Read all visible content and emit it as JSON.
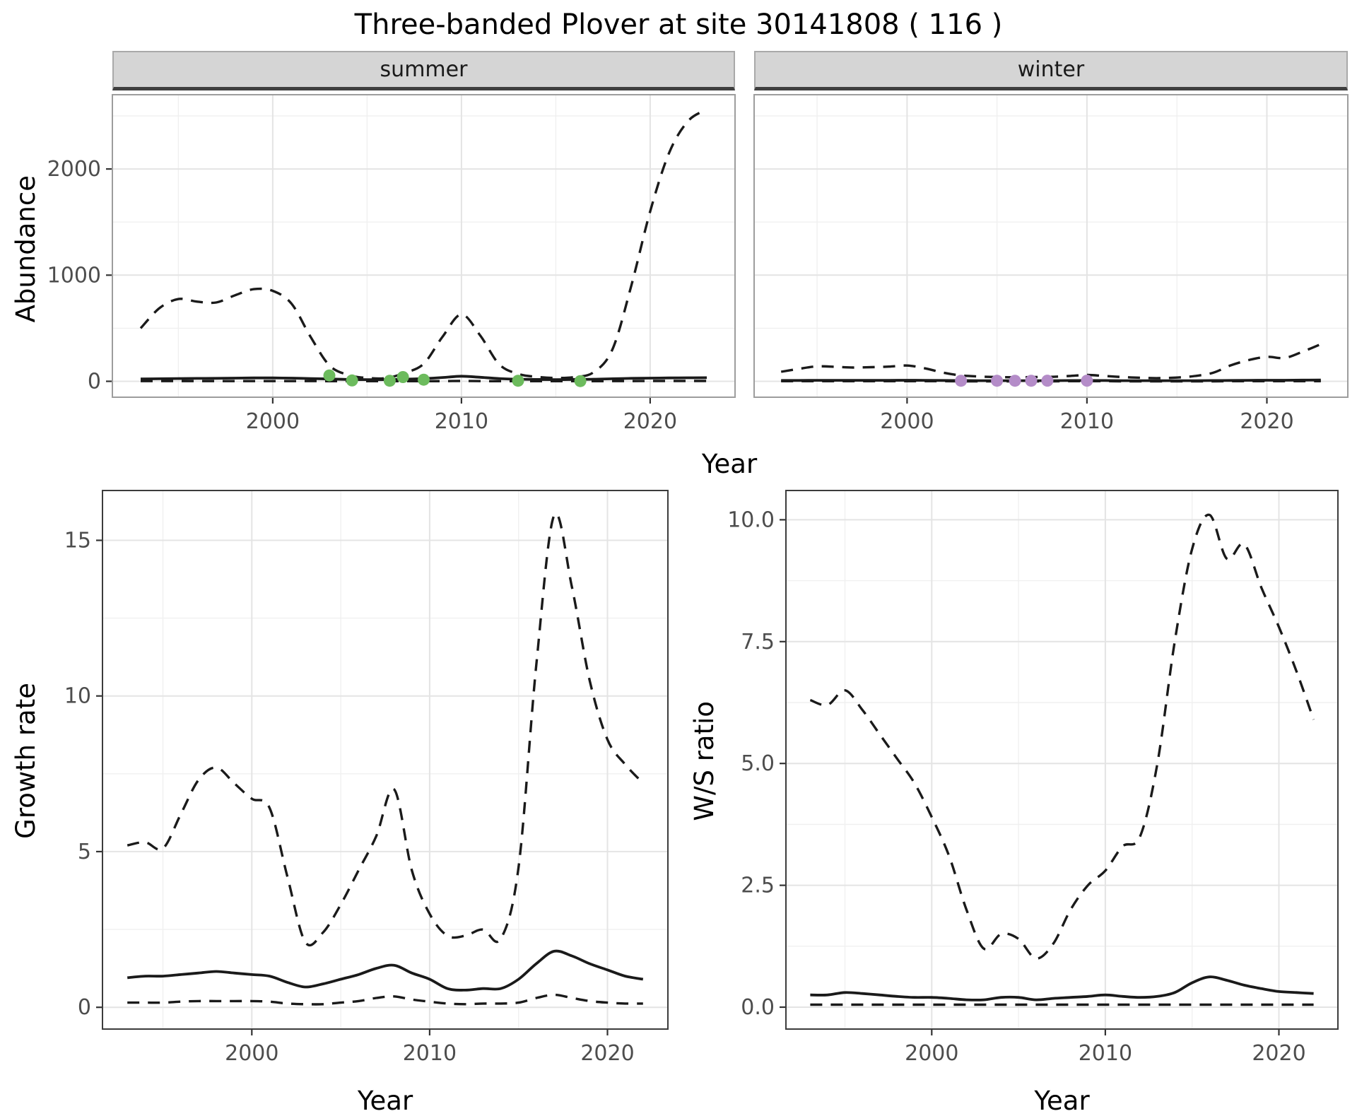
{
  "title": "Three-banded Plover at site 30141808 ( 116 )",
  "axes": {
    "abundance_label": "Abundance",
    "growth_label": "Growth rate",
    "ws_label": "W/S ratio",
    "year_label": "Year"
  },
  "facets": {
    "summer": "summer",
    "winter": "winter"
  },
  "colors": {
    "line": "#1A1A1A",
    "summer_points": "#6CBB5D",
    "winter_points": "#B48CC8",
    "strip_bg": "#D5D5D5",
    "grid_major": "#E4E4E4",
    "grid_minor": "#F0F0F0",
    "tick_text": "#4D4D4D",
    "tick_mark": "#333333"
  },
  "chart_data": [
    {
      "id": "abundance_summer",
      "type": "line",
      "facet": "summer",
      "xlabel": "Year",
      "ylabel": "Abundance",
      "xlim": [
        1991.5,
        2024.5
      ],
      "ylim": [
        -150,
        2700
      ],
      "xticks": [
        2000,
        2010,
        2020
      ],
      "yticks": [
        0,
        1000,
        2000
      ],
      "xminor": [
        1995,
        2005,
        2015
      ],
      "yminor": [
        500,
        1500,
        2500
      ],
      "show_y_tick_labels": true,
      "x": [
        1993,
        1994,
        1995,
        1996,
        1997,
        1998,
        1999,
        2000,
        2001,
        2002,
        2003,
        2004,
        2005,
        2006,
        2007,
        2008,
        2009,
        2010,
        2011,
        2012,
        2013,
        2014,
        2015,
        2016,
        2017,
        2018,
        2019,
        2020,
        2021,
        2022,
        2023
      ],
      "series": [
        {
          "name": "upper_ci",
          "dash": true,
          "y": [
            500,
            690,
            775,
            750,
            742,
            810,
            868,
            852,
            730,
            420,
            150,
            60,
            32,
            30,
            80,
            165,
            420,
            630,
            430,
            160,
            70,
            42,
            32,
            40,
            85,
            300,
            900,
            1600,
            2150,
            2450,
            2560
          ]
        },
        {
          "name": "median",
          "dash": false,
          "y": [
            22,
            24,
            26,
            27,
            28,
            30,
            32,
            32,
            30,
            26,
            22,
            18,
            16,
            16,
            20,
            26,
            36,
            48,
            38,
            26,
            20,
            17,
            16,
            18,
            20,
            24,
            28,
            30,
            32,
            33,
            34
          ]
        },
        {
          "name": "lower_ci",
          "dash": true,
          "y": [
            2,
            2,
            2,
            2,
            2,
            2,
            2,
            2,
            2,
            2,
            1,
            1,
            1,
            1,
            1,
            1,
            2,
            3,
            2,
            1,
            1,
            1,
            1,
            1,
            1,
            2,
            2,
            3,
            3,
            3,
            3
          ]
        }
      ],
      "points": {
        "name": "observed_counts_summer",
        "color_key": "summer_points",
        "x": [
          2003,
          2004.2,
          2006.2,
          2006.9,
          2008,
          2013,
          2016.3
        ],
        "y": [
          55,
          8,
          5,
          40,
          15,
          5,
          2
        ]
      }
    },
    {
      "id": "abundance_winter",
      "type": "line",
      "facet": "winter",
      "xlabel": "Year",
      "ylabel": "Abundance",
      "xlim": [
        1991.5,
        2024.5
      ],
      "ylim": [
        -150,
        2700
      ],
      "xticks": [
        2000,
        2010,
        2020
      ],
      "yticks": [
        0,
        1000,
        2000
      ],
      "xminor": [
        1995,
        2005,
        2015
      ],
      "yminor": [
        500,
        1500,
        2500
      ],
      "show_y_tick_labels": false,
      "x": [
        1993,
        1994,
        1995,
        1996,
        1997,
        1998,
        1999,
        2000,
        2001,
        2002,
        2003,
        2004,
        2005,
        2006,
        2007,
        2008,
        2009,
        2010,
        2011,
        2012,
        2013,
        2014,
        2015,
        2016,
        2017,
        2018,
        2019,
        2020,
        2021,
        2022,
        2023
      ],
      "series": [
        {
          "name": "upper_ci",
          "dash": true,
          "y": [
            90,
            118,
            140,
            136,
            130,
            133,
            138,
            148,
            122,
            82,
            55,
            45,
            40,
            38,
            40,
            42,
            50,
            60,
            50,
            40,
            33,
            30,
            35,
            50,
            80,
            150,
            200,
            230,
            220,
            280,
            350
          ]
        },
        {
          "name": "median",
          "dash": false,
          "y": [
            8,
            8,
            9,
            9,
            9,
            9,
            9,
            10,
            9,
            8,
            7,
            6,
            6,
            6,
            6,
            6,
            7,
            8,
            7,
            6,
            6,
            5,
            6,
            6,
            7,
            8,
            9,
            10,
            10,
            11,
            12
          ]
        },
        {
          "name": "lower_ci",
          "dash": true,
          "y": [
            1,
            1,
            1,
            1,
            1,
            1,
            1,
            1,
            1,
            1,
            0,
            0,
            0,
            0,
            0,
            0,
            1,
            1,
            1,
            0,
            0,
            0,
            0,
            0,
            0,
            1,
            1,
            1,
            1,
            1,
            1
          ]
        }
      ],
      "points": {
        "name": "observed_counts_winter",
        "color_key": "winter_points",
        "x": [
          2003,
          2005,
          2006,
          2006.9,
          2007.8,
          2010
        ],
        "y": [
          5,
          5,
          5,
          5,
          6,
          6
        ]
      }
    },
    {
      "id": "growth_rate",
      "type": "line",
      "xlabel": "Year",
      "ylabel": "Growth rate",
      "xlim": [
        1991.6,
        2023.4
      ],
      "ylim": [
        -0.7,
        16.6
      ],
      "xticks": [
        2000,
        2010,
        2020
      ],
      "yticks": [
        0,
        5,
        10,
        15
      ],
      "xminor": [
        1995,
        2005,
        2015
      ],
      "yminor": [
        2.5,
        7.5,
        12.5
      ],
      "show_y_tick_labels": true,
      "x": [
        1993,
        1994,
        1995,
        1996,
        1997,
        1998,
        1999,
        2000,
        2001,
        2002,
        2003,
        2004,
        2005,
        2006,
        2007,
        2008,
        2009,
        2010,
        2011,
        2012,
        2013,
        2014,
        2015,
        2016,
        2017,
        2018,
        2019,
        2020,
        2021,
        2022
      ],
      "series": [
        {
          "name": "upper_ci",
          "dash": true,
          "y": [
            5.2,
            5.3,
            5.1,
            6.2,
            7.3,
            7.7,
            7.2,
            6.7,
            6.4,
            4.2,
            2.1,
            2.4,
            3.3,
            4.4,
            5.5,
            7.0,
            4.4,
            3.0,
            2.3,
            2.3,
            2.5,
            2.2,
            4.5,
            11.0,
            15.8,
            13.5,
            10.5,
            8.6,
            7.8,
            7.2
          ]
        },
        {
          "name": "median",
          "dash": false,
          "y": [
            0.95,
            1.0,
            1.0,
            1.05,
            1.1,
            1.15,
            1.1,
            1.05,
            1.0,
            0.8,
            0.65,
            0.75,
            0.9,
            1.05,
            1.25,
            1.35,
            1.1,
            0.9,
            0.6,
            0.55,
            0.6,
            0.6,
            0.9,
            1.4,
            1.8,
            1.65,
            1.4,
            1.2,
            1.0,
            0.9
          ]
        },
        {
          "name": "lower_ci",
          "dash": true,
          "y": [
            0.15,
            0.15,
            0.15,
            0.18,
            0.2,
            0.2,
            0.2,
            0.2,
            0.18,
            0.12,
            0.1,
            0.1,
            0.15,
            0.2,
            0.3,
            0.35,
            0.25,
            0.18,
            0.12,
            0.1,
            0.12,
            0.12,
            0.15,
            0.3,
            0.4,
            0.3,
            0.2,
            0.15,
            0.12,
            0.12
          ]
        }
      ]
    },
    {
      "id": "ws_ratio",
      "type": "line",
      "xlabel": "Year",
      "ylabel": "W/S ratio",
      "xlim": [
        1991.6,
        2023.4
      ],
      "ylim": [
        -0.45,
        10.6
      ],
      "xticks": [
        2000,
        2010,
        2020
      ],
      "yticks": [
        0,
        2.5,
        5,
        7.5,
        10
      ],
      "ytick_labels": [
        "0.0",
        "2.5",
        "5.0",
        "7.5",
        "10.0"
      ],
      "xminor": [
        1995,
        2005,
        2015
      ],
      "yminor": [
        1.25,
        3.75,
        6.25,
        8.75
      ],
      "show_y_tick_labels": true,
      "x": [
        1993,
        1994,
        1995,
        1996,
        1997,
        1998,
        1999,
        2000,
        2001,
        2002,
        2003,
        2004,
        2005,
        2006,
        2007,
        2008,
        2009,
        2010,
        2011,
        2012,
        2013,
        2014,
        2015,
        2016,
        2017,
        2018,
        2019,
        2020,
        2021,
        2022
      ],
      "series": [
        {
          "name": "upper_ci",
          "dash": true,
          "y": [
            6.3,
            6.2,
            6.5,
            6.1,
            5.6,
            5.1,
            4.6,
            3.9,
            3.1,
            2.0,
            1.2,
            1.5,
            1.4,
            1.0,
            1.3,
            2.0,
            2.5,
            2.8,
            3.3,
            3.5,
            5.0,
            7.5,
            9.4,
            10.1,
            9.2,
            9.5,
            8.6,
            7.8,
            6.9,
            5.9
          ]
        },
        {
          "name": "median",
          "dash": false,
          "y": [
            0.25,
            0.25,
            0.3,
            0.28,
            0.25,
            0.22,
            0.2,
            0.2,
            0.18,
            0.15,
            0.15,
            0.2,
            0.2,
            0.15,
            0.18,
            0.2,
            0.22,
            0.25,
            0.22,
            0.2,
            0.22,
            0.3,
            0.5,
            0.62,
            0.55,
            0.45,
            0.38,
            0.32,
            0.3,
            0.28
          ]
        },
        {
          "name": "lower_ci",
          "dash": true,
          "y": [
            0.05,
            0.05,
            0.05,
            0.05,
            0.05,
            0.05,
            0.05,
            0.05,
            0.05,
            0.05,
            0.05,
            0.05,
            0.05,
            0.05,
            0.05,
            0.05,
            0.05,
            0.05,
            0.05,
            0.05,
            0.05,
            0.05,
            0.05,
            0.05,
            0.05,
            0.05,
            0.05,
            0.05,
            0.05,
            0.05
          ]
        }
      ]
    }
  ]
}
